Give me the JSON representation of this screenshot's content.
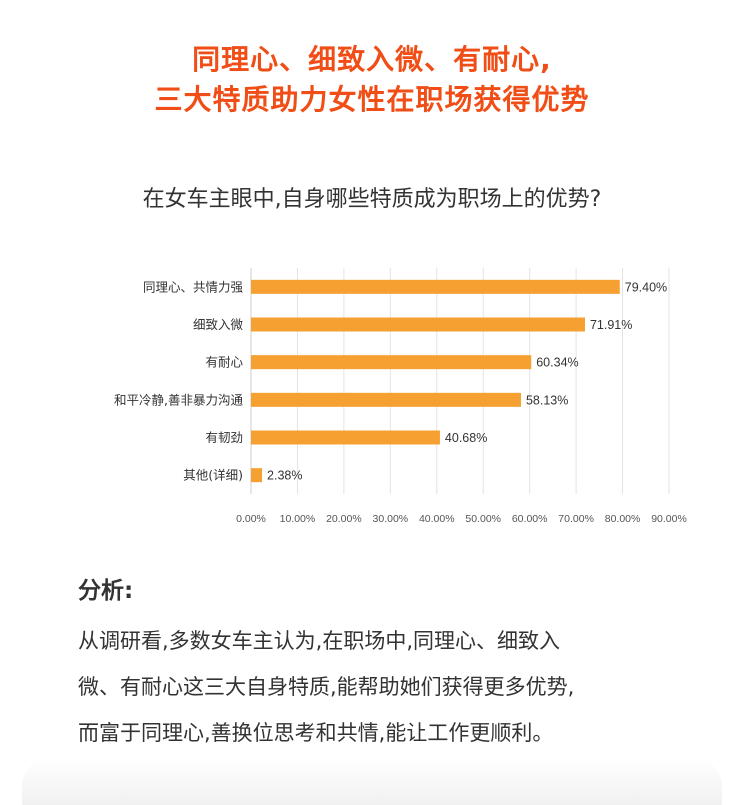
{
  "header": {
    "line1": "同理心、细致入微、有耐心,",
    "line2": "三大特质助力女性在职场获得优势"
  },
  "question": "在女车主眼中,自身哪些特质成为职场上的优势?",
  "chart_data": {
    "type": "bar",
    "orientation": "horizontal",
    "categories": [
      "同理心、共情力强",
      "细致入微",
      "有耐心",
      "和平冷静,善非暴力沟通",
      "有韧劲",
      "其他(详细)"
    ],
    "values": [
      79.4,
      71.91,
      60.34,
      58.13,
      40.68,
      2.38
    ],
    "value_labels": [
      "79.40%",
      "71.91%",
      "60.34%",
      "58.13%",
      "40.68%",
      "2.38%"
    ],
    "xlim": [
      0,
      90
    ],
    "x_ticks": [
      "0.00%",
      "10.00%",
      "20.00%",
      "30.00%",
      "40.00%",
      "50.00%",
      "60.00%",
      "70.00%",
      "80.00%",
      "90.00%"
    ],
    "grid": true,
    "bar_color": "#f5a030",
    "title": "",
    "xlabel": "",
    "ylabel": ""
  },
  "analysis": {
    "title": "分析:",
    "lines": [
      "从调研看,多数女车主认为,在职场中,同理心、细致入",
      "微、有耐心这三大自身特质,能帮助她们获得更多优势,",
      "而富于同理心,善换位思考和共情,能让工作更顺利。"
    ]
  }
}
